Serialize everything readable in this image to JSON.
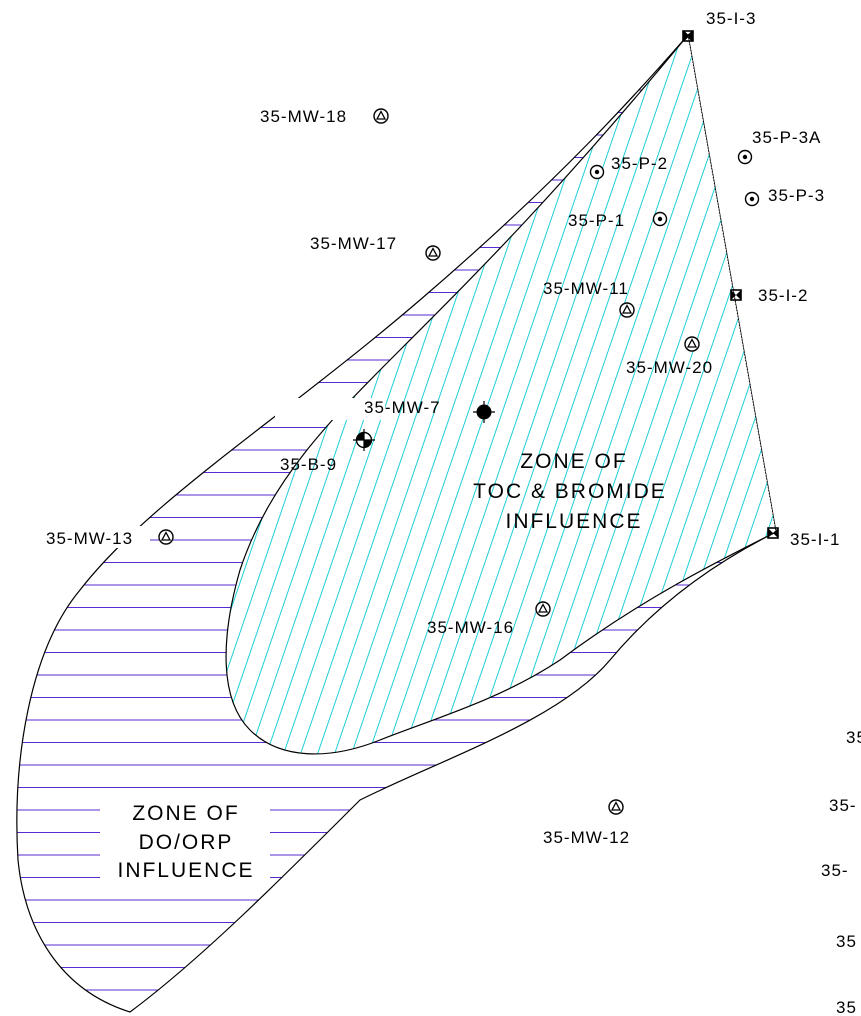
{
  "colors": {
    "background": "#ffffff",
    "outline": "#000000",
    "do_orp_hatch": "#5a2bd0",
    "toc_bromide_hatch": "#1fcfd9"
  },
  "zones": {
    "toc_bromide": {
      "lines": [
        "ZONE OF",
        "TOC & BROMIDE",
        "INFLUENCE"
      ]
    },
    "do_orp": {
      "lines": [
        "ZONE OF",
        "DO/ORP",
        "INFLUENCE"
      ]
    }
  },
  "wells": {
    "i3": {
      "label": "35-I-3",
      "icon": "injection-well-icon"
    },
    "i2": {
      "label": "35-I-2",
      "icon": "injection-well-icon"
    },
    "i1": {
      "label": "35-I-1",
      "icon": "injection-well-icon"
    },
    "p3a": {
      "label": "35-P-3A",
      "icon": "piezometer-icon"
    },
    "p3": {
      "label": "35-P-3",
      "icon": "piezometer-icon"
    },
    "p2": {
      "label": "35-P-2",
      "icon": "piezometer-icon"
    },
    "p1": {
      "label": "35-P-1",
      "icon": "piezometer-icon"
    },
    "mw18": {
      "label": "35-MW-18",
      "icon": "monitoring-well-icon"
    },
    "mw17": {
      "label": "35-MW-17",
      "icon": "monitoring-well-icon"
    },
    "mw11": {
      "label": "35-MW-11",
      "icon": "monitoring-well-icon"
    },
    "mw20": {
      "label": "35-MW-20",
      "icon": "monitoring-well-icon"
    },
    "mw7": {
      "label": "35-MW-7",
      "icon": "filled-well-icon"
    },
    "b9": {
      "label": "35-B-9",
      "icon": "soil-boring-icon"
    },
    "mw13": {
      "label": "35-MW-13",
      "icon": "monitoring-well-icon"
    },
    "mw16": {
      "label": "35-MW-16",
      "icon": "monitoring-well-icon"
    },
    "mw12": {
      "label": "35-MW-12",
      "icon": "monitoring-well-icon"
    }
  },
  "edge_fragments": [
    "35",
    "35-",
    "35-",
    "35",
    "35"
  ]
}
